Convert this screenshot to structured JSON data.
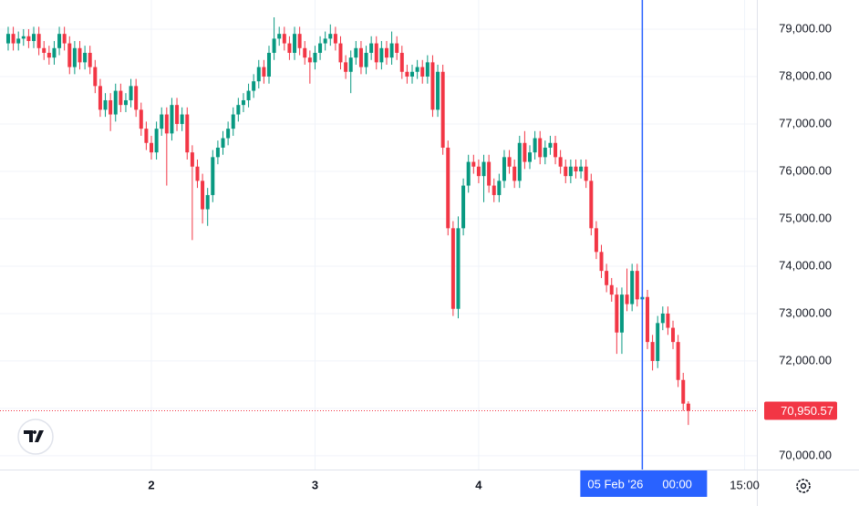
{
  "chart_data": {
    "type": "candlestick",
    "up_color": "#089981",
    "down_color": "#f23645",
    "grid": true,
    "xlim": [
      1.8,
      112.8
    ],
    "ylim": [
      69710,
      79615
    ],
    "xticks": [
      {
        "value": 24,
        "label": "2"
      },
      {
        "value": 48,
        "label": "3"
      },
      {
        "value": 72,
        "label": "4"
      },
      {
        "value": 111,
        "label": "15:00"
      }
    ],
    "yticks": [
      {
        "value": 70000,
        "label": "70,000.00"
      },
      {
        "value": 71000,
        "label": "71,000.00"
      },
      {
        "value": 72000,
        "label": "72,000.00"
      },
      {
        "value": 73000,
        "label": "73,000.00"
      },
      {
        "value": 74000,
        "label": "74,000.00"
      },
      {
        "value": 75000,
        "label": "75,000.00"
      },
      {
        "value": 76000,
        "label": "76,000.00"
      },
      {
        "value": 77000,
        "label": "77,000.00"
      },
      {
        "value": 78000,
        "label": "78,000.00"
      },
      {
        "value": 79000,
        "label": "79,000.00"
      }
    ],
    "crosshair": {
      "x": 96,
      "label_date": "05 Feb '26",
      "label_time": "00:00",
      "color": "#2962ff"
    },
    "last_price": {
      "value": 70950.57,
      "label": "70,950.57"
    },
    "x": [
      3,
      3.75,
      4.5,
      5.25,
      6,
      6.75,
      7.5,
      8.25,
      9,
      9.75,
      10.5,
      11.25,
      12,
      12.75,
      13.5,
      14.25,
      15,
      15.75,
      16.5,
      17.25,
      18,
      18.75,
      19.5,
      20.25,
      21,
      21.75,
      22.5,
      23.25,
      24,
      24.75,
      25.5,
      26.25,
      27,
      27.75,
      28.5,
      29.25,
      30,
      30.75,
      31.5,
      32.25,
      33,
      33.75,
      34.5,
      35.25,
      36,
      36.75,
      37.5,
      38.25,
      39,
      39.75,
      40.5,
      41.25,
      42,
      42.75,
      43.5,
      44.25,
      45,
      45.75,
      46.5,
      47.25,
      48,
      48.75,
      49.5,
      50.25,
      51,
      51.75,
      52.5,
      53.25,
      54,
      54.75,
      55.5,
      56.25,
      57,
      57.75,
      58.5,
      59.25,
      60,
      60.75,
      61.5,
      62.25,
      63,
      63.75,
      64.5,
      65.25,
      66,
      66.75,
      67.5,
      68.25,
      69,
      69.75,
      70.5,
      71.25,
      72,
      72.75,
      73.5,
      74.25,
      75,
      75.75,
      76.5,
      77.25,
      78,
      78.75,
      79.5,
      80.25,
      81,
      81.75,
      82.5,
      83.25,
      84,
      84.75,
      85.5,
      86.25,
      87,
      87.75,
      88.5,
      89.25,
      90,
      90.75,
      91.5,
      92.25,
      93,
      93.75,
      94.5,
      95.25,
      96,
      96.75,
      97.5,
      98.25,
      99,
      99.75,
      100.5,
      101.25,
      102,
      102.75
    ],
    "open": [
      78700,
      78900,
      78700,
      78800,
      78850,
      78750,
      78900,
      78600,
      78500,
      78400,
      78600,
      78900,
      78700,
      78200,
      78600,
      78300,
      78500,
      78200,
      77800,
      77300,
      77500,
      77200,
      77700,
      77400,
      77500,
      77800,
      77300,
      76900,
      76600,
      76400,
      76900,
      77200,
      76800,
      77400,
      77000,
      77200,
      76400,
      76100,
      75800,
      75200,
      75500,
      76300,
      76500,
      76700,
      76900,
      77200,
      77400,
      77500,
      77700,
      77900,
      78200,
      78000,
      78500,
      78800,
      78900,
      78700,
      78500,
      78900,
      78600,
      78400,
      78300,
      78500,
      78700,
      78800,
      78900,
      78700,
      78300,
      78100,
      78400,
      78600,
      78200,
      78500,
      78700,
      78300,
      78600,
      78400,
      78700,
      78500,
      78100,
      78000,
      78100,
      78200,
      78000,
      78300,
      77300,
      78100,
      76500,
      74800,
      73100,
      74800,
      75700,
      76200,
      76100,
      75900,
      76200,
      75700,
      75500,
      75800,
      76300,
      76100,
      75800,
      76600,
      76200,
      76400,
      76700,
      76300,
      76500,
      76600,
      76300,
      76100,
      75900,
      76100,
      76000,
      76100,
      75800,
      74800,
      74300,
      73900,
      73600,
      73400,
      72600,
      73400,
      73200,
      73900,
      73300,
      73350,
      72400,
      72000,
      72800,
      73000,
      72700,
      72400,
      71600,
      71100
    ],
    "high": [
      79050,
      79050,
      78950,
      79000,
      79000,
      79050,
      79050,
      78750,
      78650,
      78750,
      79050,
      79050,
      78850,
      78750,
      78750,
      78650,
      78650,
      78350,
      77950,
      77650,
      77650,
      77850,
      77850,
      77650,
      77950,
      77950,
      77450,
      77050,
      76750,
      77050,
      77350,
      77350,
      77550,
      77550,
      77350,
      77350,
      76550,
      76250,
      75950,
      75650,
      76450,
      76650,
      76850,
      77050,
      77350,
      77550,
      77650,
      77850,
      78050,
      78350,
      78350,
      78650,
      79250,
      79050,
      79050,
      78850,
      79050,
      79050,
      78750,
      78550,
      78650,
      78850,
      78950,
      79100,
      79050,
      78850,
      78450,
      78550,
      78750,
      78750,
      78650,
      78850,
      78850,
      78750,
      78750,
      78950,
      78850,
      78650,
      78250,
      78250,
      78350,
      78350,
      78450,
      78450,
      78250,
      78250,
      76650,
      74950,
      75050,
      75850,
      76350,
      76350,
      76250,
      76350,
      76350,
      75850,
      75950,
      76450,
      76450,
      76250,
      76750,
      76850,
      76550,
      76850,
      76850,
      76650,
      76750,
      76750,
      76450,
      76250,
      76250,
      76250,
      76250,
      76250,
      75950,
      74950,
      74450,
      74050,
      73750,
      73550,
      73550,
      73950,
      74050,
      74050,
      73500,
      73500,
      72550,
      72950,
      73150,
      73150,
      72850,
      72550,
      71750,
      71150
    ],
    "low": [
      78550,
      78550,
      78550,
      78650,
      78600,
      78600,
      78450,
      78350,
      78250,
      78250,
      78450,
      78550,
      78050,
      78050,
      78150,
      78150,
      78050,
      77650,
      77150,
      77150,
      76850,
      77050,
      77250,
      77250,
      77350,
      77150,
      76750,
      76450,
      76250,
      76250,
      76750,
      75700,
      76650,
      76850,
      76850,
      76250,
      74550,
      75650,
      74900,
      74850,
      75350,
      76150,
      76350,
      76550,
      76750,
      77050,
      77250,
      77350,
      77550,
      77750,
      77850,
      77850,
      78350,
      78650,
      78550,
      78350,
      78350,
      78450,
      78250,
      77850,
      78150,
      78350,
      78550,
      78650,
      78550,
      78150,
      77950,
      77650,
      78250,
      78050,
      78050,
      78350,
      78150,
      78150,
      78250,
      78250,
      78350,
      77950,
      77850,
      77850,
      77950,
      77850,
      77850,
      77150,
      77150,
      76350,
      74650,
      72950,
      72900,
      74650,
      75550,
      75950,
      75750,
      75350,
      75550,
      75350,
      75350,
      75650,
      75950,
      75650,
      75650,
      76050,
      76050,
      76250,
      76150,
      76150,
      76350,
      76150,
      75950,
      75750,
      75750,
      75850,
      75850,
      75650,
      74650,
      74150,
      73750,
      73450,
      73250,
      72150,
      72150,
      73050,
      73050,
      73150,
      73150,
      72250,
      71800,
      71850,
      72650,
      72550,
      72250,
      71450,
      70950,
      70650
    ],
    "close": [
      78900,
      78700,
      78800,
      78850,
      78750,
      78900,
      78600,
      78500,
      78400,
      78600,
      78900,
      78700,
      78200,
      78600,
      78300,
      78500,
      78200,
      77800,
      77300,
      77500,
      77200,
      77700,
      77400,
      77500,
      77800,
      77300,
      76900,
      76600,
      76400,
      76900,
      77200,
      76800,
      77400,
      77000,
      77200,
      76400,
      76100,
      75800,
      75200,
      75500,
      76300,
      76500,
      76700,
      76900,
      77200,
      77400,
      77500,
      77700,
      77900,
      78200,
      78000,
      78500,
      78800,
      78900,
      78700,
      78500,
      78900,
      78600,
      78400,
      78300,
      78500,
      78700,
      78800,
      78900,
      78700,
      78300,
      78100,
      78400,
      78600,
      78200,
      78500,
      78700,
      78300,
      78600,
      78400,
      78700,
      78500,
      78100,
      78000,
      78100,
      78200,
      78000,
      78300,
      77300,
      78100,
      76500,
      74800,
      73100,
      74800,
      75700,
      76200,
      76100,
      75900,
      76200,
      75700,
      75500,
      75800,
      76300,
      76100,
      75800,
      76600,
      76200,
      76400,
      76700,
      76300,
      76500,
      76600,
      76300,
      76100,
      75900,
      76100,
      76000,
      76100,
      75800,
      74800,
      74300,
      73900,
      73600,
      73400,
      72600,
      73400,
      73200,
      73900,
      73300,
      73350,
      72400,
      72000,
      72800,
      73000,
      72700,
      72400,
      71600,
      71100,
      70950.57
    ]
  }
}
